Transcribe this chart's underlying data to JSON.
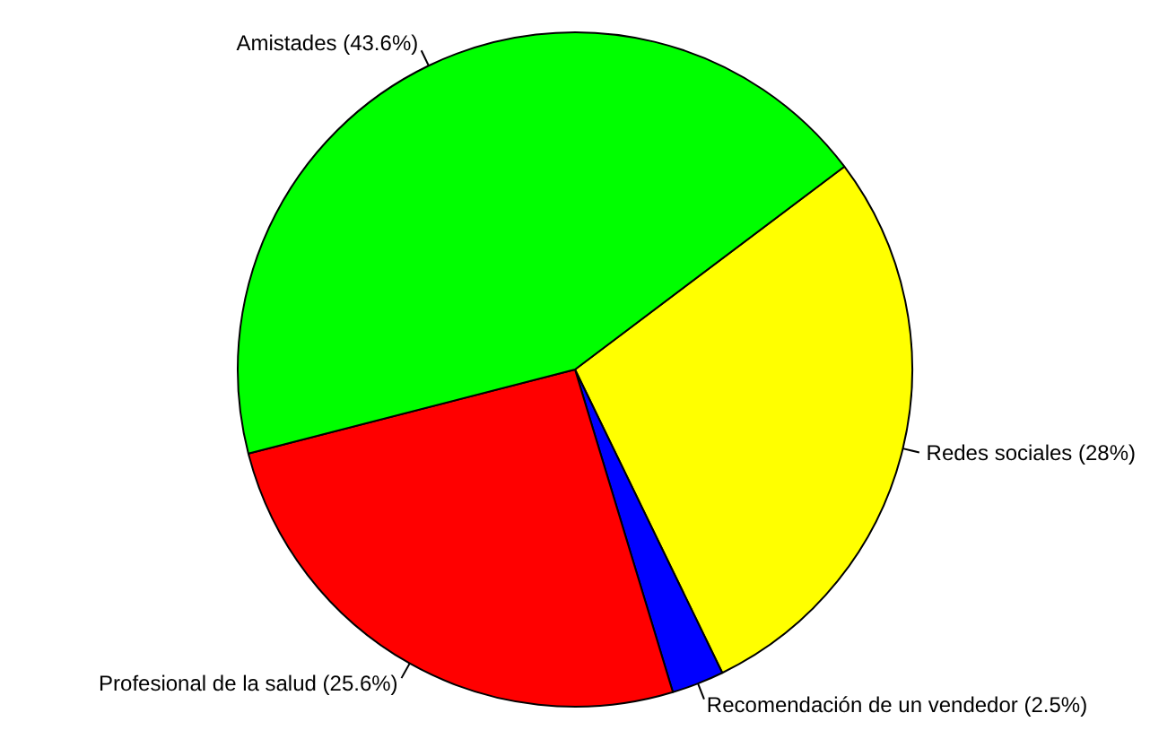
{
  "chart_data": {
    "type": "pie",
    "categories": [
      "Redes sociales (28%)",
      "Recomendación de un vendedor (2.5%)",
      "Profesional de la salud (25.6%)",
      "Amistades (43.6%)"
    ],
    "values": [
      28,
      2.5,
      25.6,
      43.6
    ],
    "colors": [
      "#ffff00",
      "#0000ff",
      "#ff0000",
      "#00ff00"
    ],
    "legend": false
  }
}
